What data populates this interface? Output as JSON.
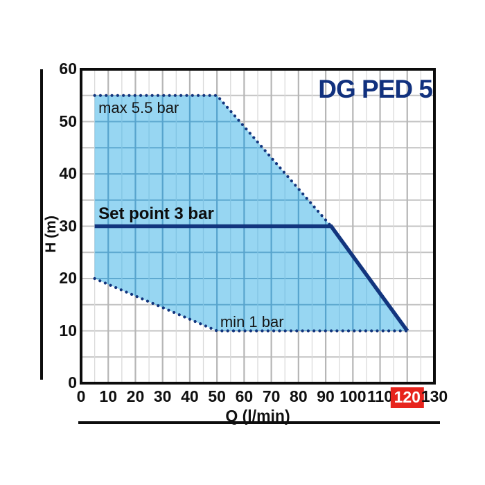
{
  "title": "DG PED 5",
  "colors": {
    "title_text": "#11317e",
    "navy_line": "#12357e",
    "region_fill": "#97d6f2",
    "grid_h": "#c3c3c3",
    "grid_v_major": "#b6b6b6",
    "grid_v_minor": "#dadada",
    "grid_h_inside": "#5ea9d0",
    "grid_v_major_inside": "#57a4cd",
    "grid_v_minor_inside": "#82c4e3",
    "plot_border": "#0c0c0c",
    "axis_text": "#101010",
    "highlight_bg": "#e7241d",
    "highlight_text": "#ffffff"
  },
  "chart_data": {
    "type": "area",
    "title": "DG PED 5",
    "xlabel": "Q (l/min)",
    "ylabel": "H (m)",
    "xlim": [
      0,
      130
    ],
    "ylim": [
      0,
      60
    ],
    "grid_step": 5,
    "x_ticks": [
      0,
      10,
      20,
      30,
      40,
      50,
      60,
      70,
      80,
      90,
      100,
      110,
      120,
      130
    ],
    "y_ticks": [
      0,
      10,
      20,
      30,
      40,
      50,
      60
    ],
    "highlighted_x_tick": 120,
    "legend_position": "none",
    "grid": true,
    "envelope_polygon": [
      [
        5,
        55
      ],
      [
        50,
        55
      ],
      [
        92,
        30
      ],
      [
        120,
        10
      ],
      [
        50,
        10
      ],
      [
        5,
        20
      ]
    ],
    "series": [
      {
        "name": "max 5.5 bar boundary",
        "style": "dotted",
        "points": [
          [
            5,
            55
          ],
          [
            50,
            55
          ],
          [
            92,
            30
          ]
        ]
      },
      {
        "name": "min 1 bar boundary",
        "style": "dotted",
        "points": [
          [
            5,
            20
          ],
          [
            50,
            10
          ],
          [
            120,
            10
          ]
        ]
      },
      {
        "name": "set point 3 bar",
        "style": "solid",
        "points": [
          [
            5,
            30
          ],
          [
            92,
            30
          ],
          [
            120,
            10
          ]
        ]
      }
    ],
    "annotations": [
      {
        "id": "max-label",
        "text": "max 5.5 bar",
        "q": 6.4,
        "h": 54.2,
        "bold": false
      },
      {
        "id": "setpoint-label",
        "text": "Set point 3 bar",
        "q": 6.4,
        "h": 34.0,
        "bold": true
      },
      {
        "id": "min-label",
        "text": "min 1 bar",
        "q": 51.2,
        "h": 13.2,
        "bold": false
      }
    ]
  }
}
